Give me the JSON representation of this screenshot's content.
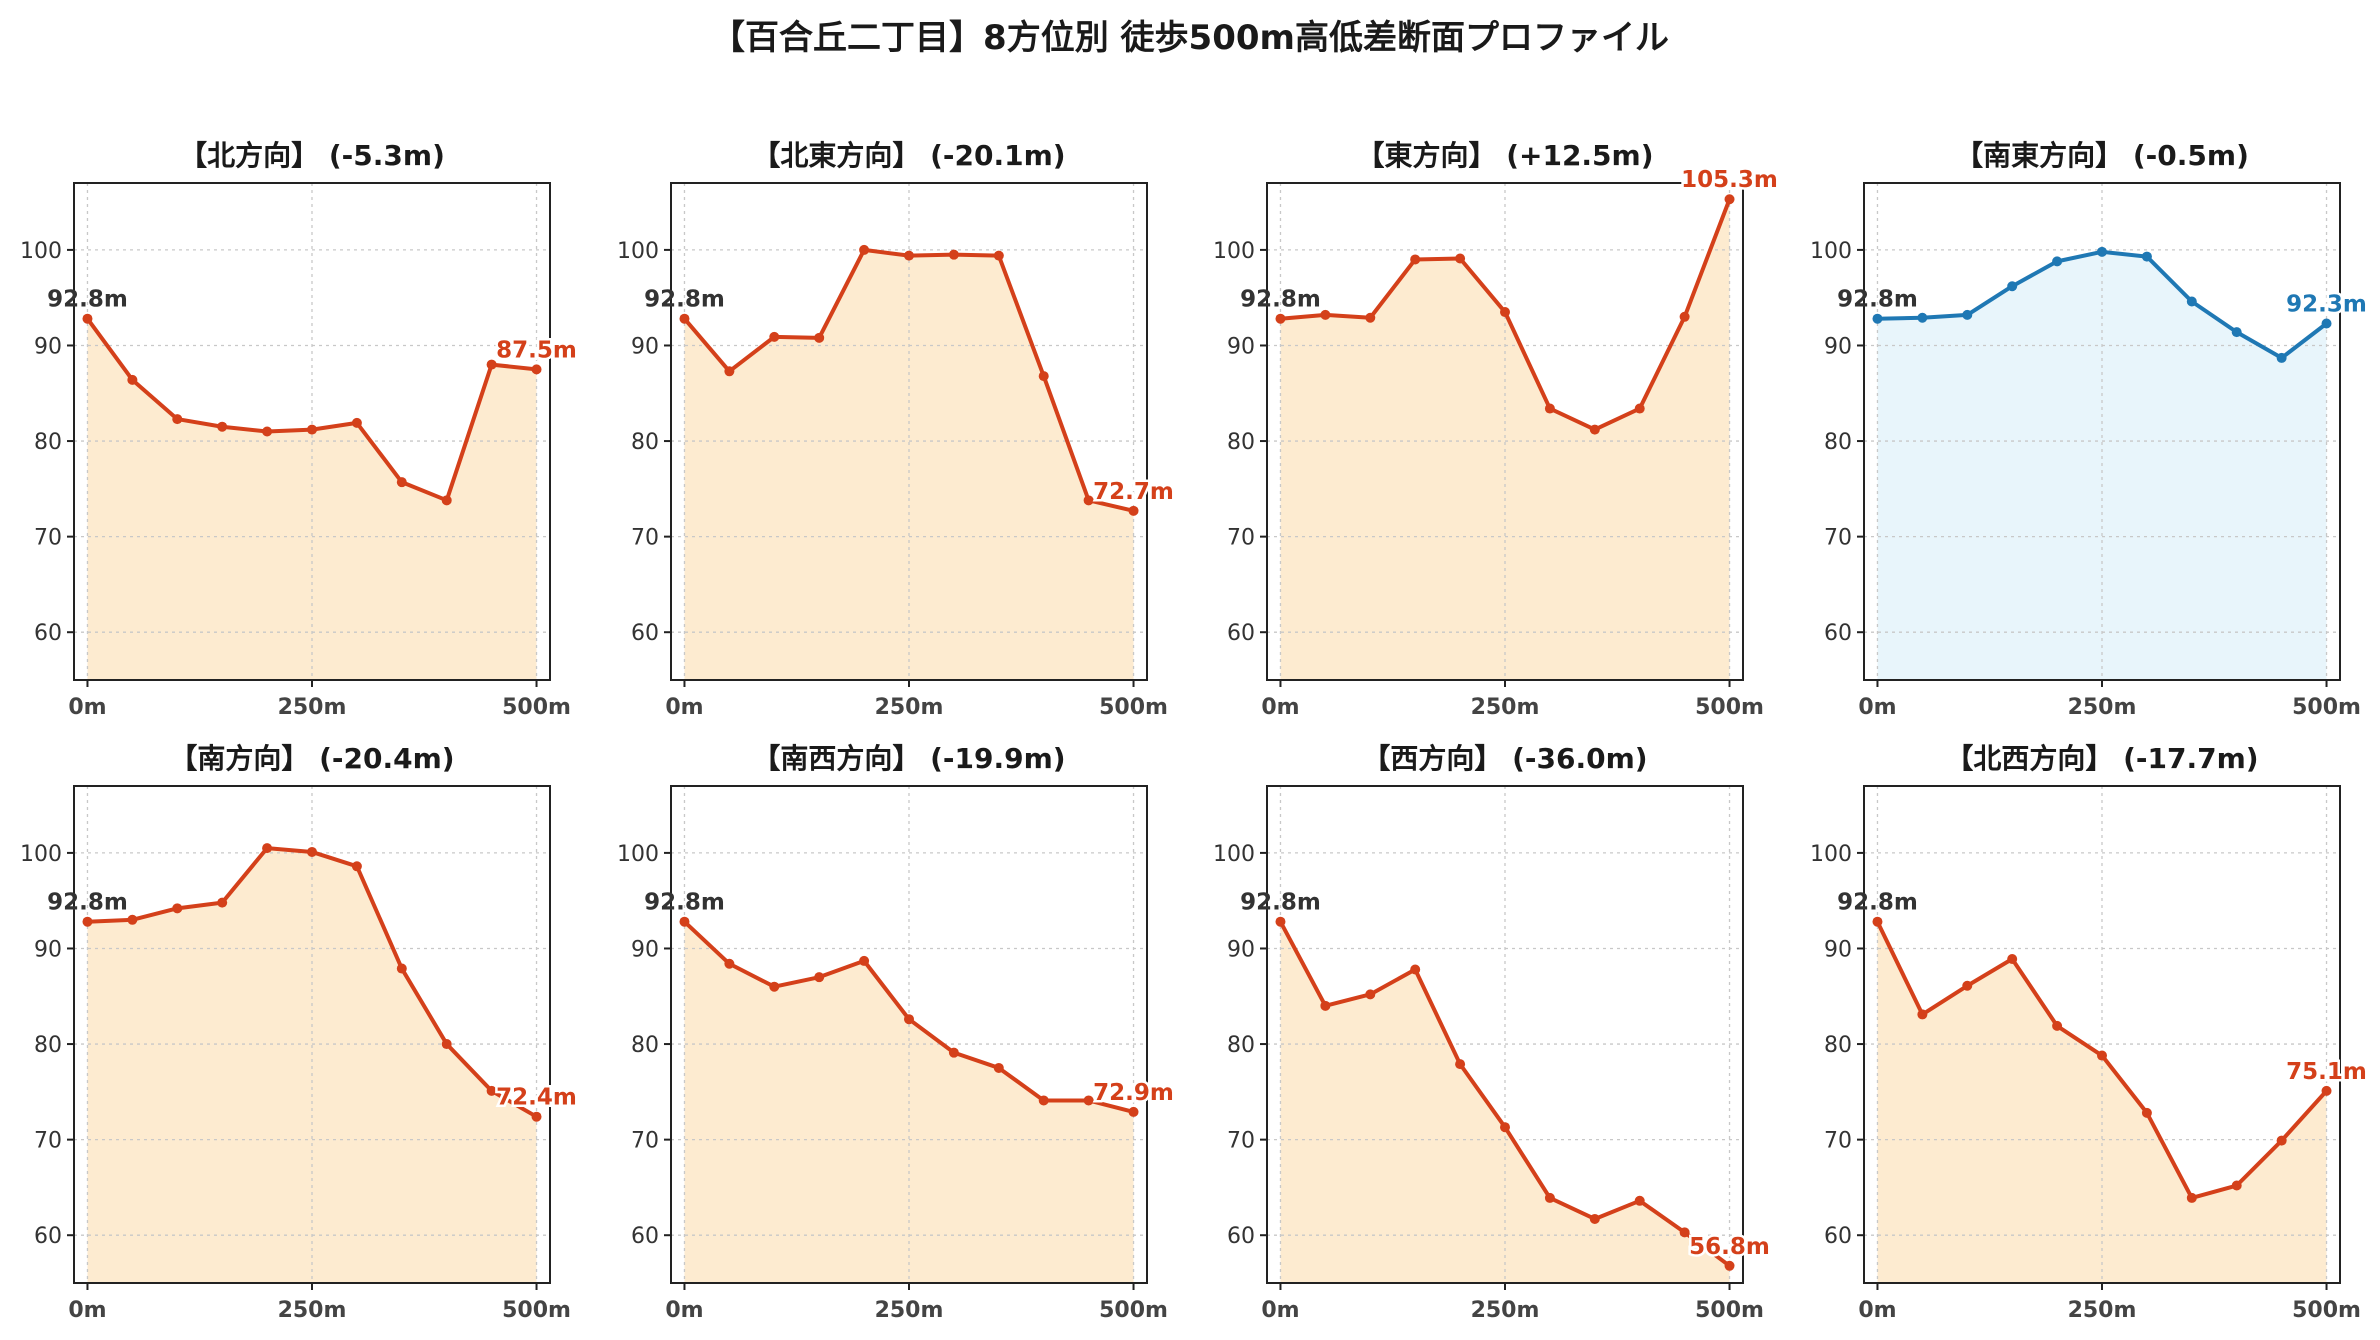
{
  "title": "【百合丘二丁目】8方位別 徒歩500m高低差断面プロファイル",
  "colors": {
    "descent_line": "#d4401a",
    "descent_fill": "#fdebd0",
    "ascent_line": "#1f78b4",
    "ascent_fill": "#e8f5fb",
    "start_label": "#333333"
  },
  "chart_data": [
    {
      "type": "area",
      "title": "【北方向】 (-5.3m)",
      "x": [
        0,
        50,
        100,
        150,
        200,
        250,
        300,
        350,
        400,
        450,
        500
      ],
      "values": [
        92.8,
        86.4,
        82.3,
        81.5,
        81.0,
        81.2,
        81.9,
        75.7,
        73.8,
        88.0,
        87.5
      ],
      "start_label": "92.8m",
      "end_label": "87.5m",
      "xticks": [
        "0m",
        "250m",
        "500m"
      ],
      "yticks": [
        "60",
        "70",
        "80",
        "90",
        "100"
      ],
      "ylim": [
        55,
        107
      ],
      "xlim": [
        -15,
        515
      ],
      "trend": "descent"
    },
    {
      "type": "area",
      "title": "【北東方向】 (-20.1m)",
      "x": [
        0,
        50,
        100,
        150,
        200,
        250,
        300,
        350,
        400,
        450,
        500
      ],
      "values": [
        92.8,
        87.3,
        90.9,
        90.8,
        100.0,
        99.4,
        99.5,
        99.4,
        86.8,
        73.8,
        72.7
      ],
      "start_label": "92.8m",
      "end_label": "72.7m",
      "xticks": [
        "0m",
        "250m",
        "500m"
      ],
      "yticks": [
        "60",
        "70",
        "80",
        "90",
        "100"
      ],
      "ylim": [
        55,
        107
      ],
      "xlim": [
        -15,
        515
      ],
      "trend": "descent"
    },
    {
      "type": "area",
      "title": "【東方向】 (+12.5m)",
      "x": [
        0,
        50,
        100,
        150,
        200,
        250,
        300,
        350,
        400,
        450,
        500
      ],
      "values": [
        92.8,
        93.2,
        92.9,
        99.0,
        99.1,
        93.5,
        83.4,
        81.2,
        83.4,
        93.0,
        105.3
      ],
      "start_label": "92.8m",
      "end_label": "105.3m",
      "xticks": [
        "0m",
        "250m",
        "500m"
      ],
      "yticks": [
        "60",
        "70",
        "80",
        "90",
        "100"
      ],
      "ylim": [
        55,
        107
      ],
      "xlim": [
        -15,
        515
      ],
      "trend": "descent"
    },
    {
      "type": "area",
      "title": "【南東方向】 (-0.5m)",
      "x": [
        0,
        50,
        100,
        150,
        200,
        250,
        300,
        350,
        400,
        450,
        500
      ],
      "values": [
        92.8,
        92.9,
        93.2,
        96.2,
        98.8,
        99.8,
        99.3,
        94.6,
        91.4,
        88.7,
        92.3
      ],
      "start_label": "92.8m",
      "end_label": "92.3m",
      "xticks": [
        "0m",
        "250m",
        "500m"
      ],
      "yticks": [
        "60",
        "70",
        "80",
        "90",
        "100"
      ],
      "ylim": [
        55,
        107
      ],
      "xlim": [
        -15,
        515
      ],
      "trend": "ascent"
    },
    {
      "type": "area",
      "title": "【南方向】 (-20.4m)",
      "x": [
        0,
        50,
        100,
        150,
        200,
        250,
        300,
        350,
        400,
        450,
        500
      ],
      "values": [
        92.8,
        93.0,
        94.2,
        94.8,
        100.5,
        100.1,
        98.6,
        87.9,
        80.0,
        75.1,
        72.4
      ],
      "start_label": "92.8m",
      "end_label": "72.4m",
      "xticks": [
        "0m",
        "250m",
        "500m"
      ],
      "yticks": [
        "60",
        "70",
        "80",
        "90",
        "100"
      ],
      "ylim": [
        55,
        107
      ],
      "xlim": [
        -15,
        515
      ],
      "trend": "descent"
    },
    {
      "type": "area",
      "title": "【南西方向】 (-19.9m)",
      "x": [
        0,
        50,
        100,
        150,
        200,
        250,
        300,
        350,
        400,
        450,
        500
      ],
      "values": [
        92.8,
        88.4,
        86.0,
        87.0,
        88.7,
        82.6,
        79.1,
        77.5,
        74.1,
        74.1,
        72.9
      ],
      "start_label": "92.8m",
      "end_label": "72.9m",
      "xticks": [
        "0m",
        "250m",
        "500m"
      ],
      "yticks": [
        "60",
        "70",
        "80",
        "90",
        "100"
      ],
      "ylim": [
        55,
        107
      ],
      "xlim": [
        -15,
        515
      ],
      "trend": "descent"
    },
    {
      "type": "area",
      "title": "【西方向】 (-36.0m)",
      "x": [
        0,
        50,
        100,
        150,
        200,
        250,
        300,
        350,
        400,
        450,
        500
      ],
      "values": [
        92.8,
        84.0,
        85.2,
        87.8,
        77.9,
        71.3,
        63.9,
        61.7,
        63.6,
        60.3,
        56.8
      ],
      "start_label": "92.8m",
      "end_label": "56.8m",
      "xticks": [
        "0m",
        "250m",
        "500m"
      ],
      "yticks": [
        "60",
        "70",
        "80",
        "90",
        "100"
      ],
      "ylim": [
        55,
        107
      ],
      "xlim": [
        -15,
        515
      ],
      "trend": "descent"
    },
    {
      "type": "area",
      "title": "【北西方向】 (-17.7m)",
      "x": [
        0,
        50,
        100,
        150,
        200,
        250,
        300,
        350,
        400,
        450,
        500
      ],
      "values": [
        92.8,
        83.1,
        86.1,
        88.9,
        81.9,
        78.8,
        72.8,
        63.9,
        65.2,
        69.9,
        75.1
      ],
      "start_label": "92.8m",
      "end_label": "75.1m",
      "xticks": [
        "0m",
        "250m",
        "500m"
      ],
      "yticks": [
        "60",
        "70",
        "80",
        "90",
        "100"
      ],
      "ylim": [
        55,
        107
      ],
      "xlim": [
        -15,
        515
      ],
      "trend": "descent"
    }
  ]
}
